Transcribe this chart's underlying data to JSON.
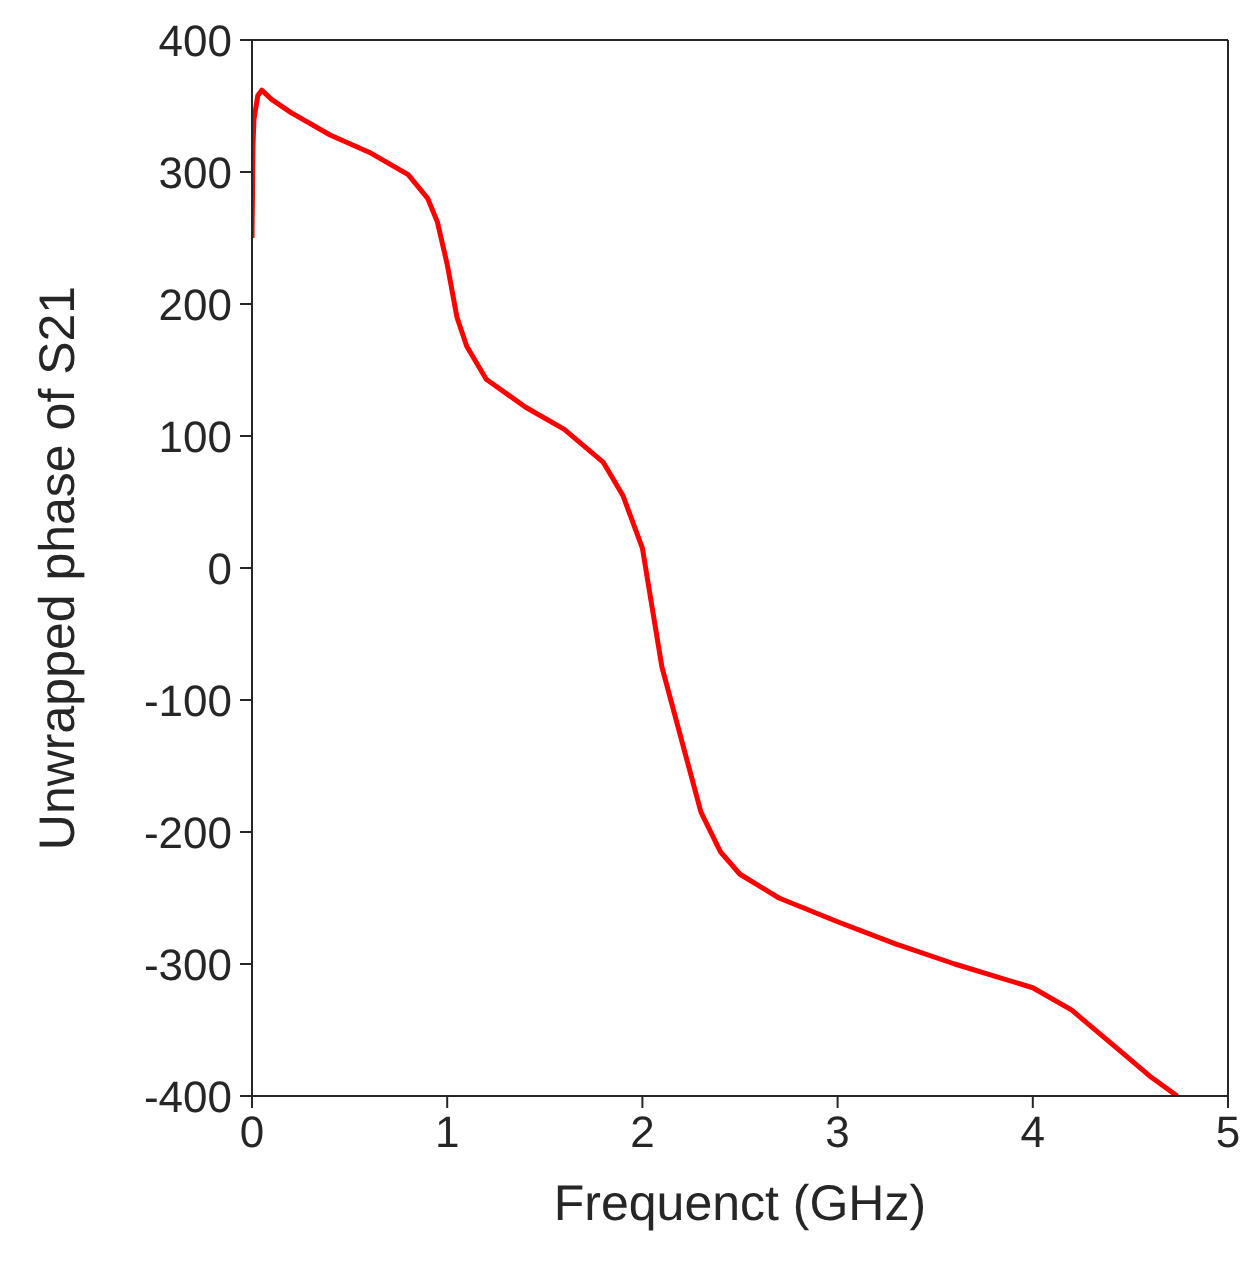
{
  "chart_data": {
    "type": "line",
    "xlabel": "Frequenct (GHz)",
    "ylabel": "Unwrapped phase of S21",
    "x": [
      0,
      0.005,
      0.01,
      0.03,
      0.05,
      0.1,
      0.2,
      0.4,
      0.6,
      0.8,
      0.9,
      0.95,
      1.0,
      1.05,
      1.1,
      1.2,
      1.4,
      1.6,
      1.8,
      1.9,
      2.0,
      2.05,
      2.1,
      2.2,
      2.3,
      2.4,
      2.5,
      2.7,
      3.0,
      3.3,
      3.6,
      4.0,
      4.2,
      4.4,
      4.6,
      4.74
    ],
    "series": [
      {
        "color": "#ff0000",
        "values": [
          250,
          320,
          340,
          358,
          362,
          355,
          345,
          328,
          315,
          298,
          280,
          262,
          230,
          190,
          168,
          143,
          122,
          105,
          80,
          55,
          15,
          -30,
          -75,
          -130,
          -185,
          -215,
          -232,
          -250,
          -268,
          -285,
          -300,
          -318,
          -335,
          -360,
          -385,
          -400
        ]
      }
    ],
    "xlim": [
      0,
      5
    ],
    "xticks": [
      0,
      1,
      2,
      3,
      4,
      5
    ],
    "ylim": [
      -400,
      400
    ],
    "yticks": [
      -400,
      -300,
      -200,
      -100,
      0,
      100,
      200,
      300,
      400
    ],
    "grid": false,
    "legend": false,
    "marker": "none",
    "line_style": "solid"
  }
}
